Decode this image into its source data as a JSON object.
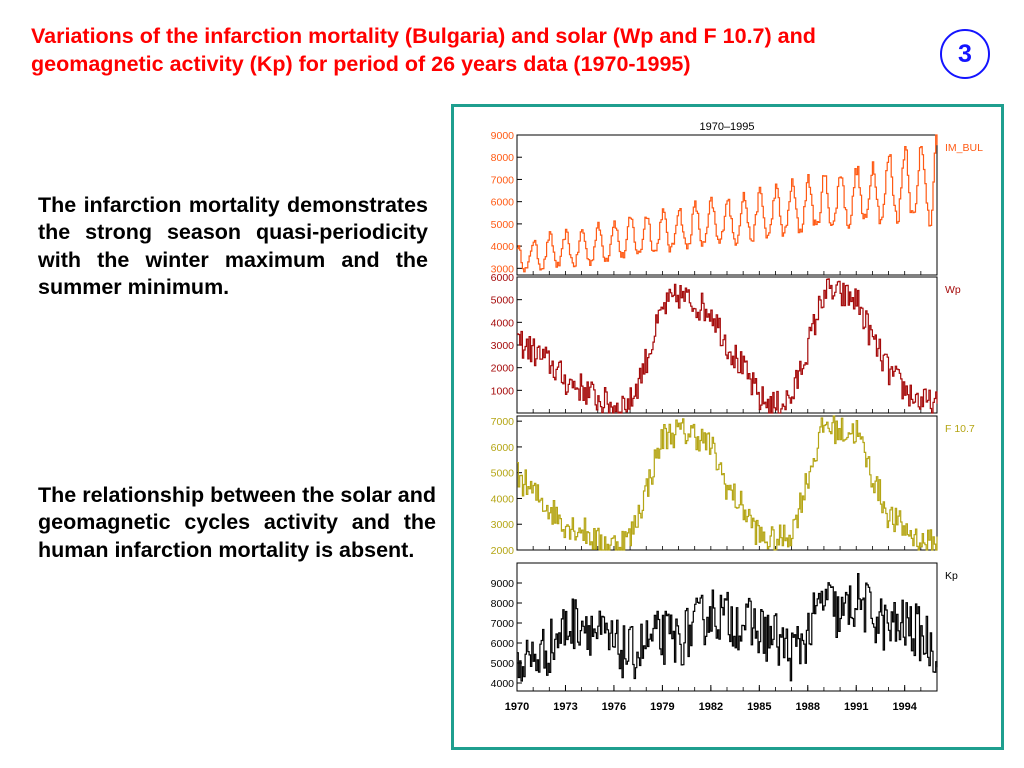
{
  "slide": {
    "title": "Variations of the infarction mortality (Bulgaria) and solar (Wp and F 10.7) and geomagnetic activity (Kp) for period of 26 years data (1970-1995)",
    "number": "3",
    "paragraph_1": "The infarction mortality demonstrates the strong season quasi-periodicity with the winter maximum and the summer minimum.",
    "paragraph_2": "The relationship between the solar and geomagnetic cycles activity and the human infarction mortality is absent.",
    "frame_color": "#1f9f8f"
  },
  "chart_data": {
    "type": "line",
    "title": "1970–1995",
    "x_range": [
      1970,
      1996
    ],
    "x_ticks": [
      "1970",
      "1973",
      "1976",
      "1979",
      "1982",
      "1985",
      "1988",
      "1991",
      "1994"
    ],
    "x_tick_values": [
      1970,
      1973,
      1976,
      1979,
      1982,
      1985,
      1988,
      1991,
      1994
    ],
    "panels": [
      {
        "name": "IM_BUL",
        "color": "#ff5a14",
        "ylim": [
          2700,
          9000
        ],
        "y_ticks": [
          3000,
          4000,
          5000,
          6000,
          7000,
          8000,
          9000
        ],
        "annual_points": [
          {
            "year": 1970,
            "low": 2900,
            "high": 4000
          },
          {
            "year": 1972,
            "low": 3100,
            "high": 4500
          },
          {
            "year": 1974,
            "low": 3200,
            "high": 4700
          },
          {
            "year": 1976,
            "low": 3500,
            "high": 5100
          },
          {
            "year": 1978,
            "low": 3700,
            "high": 5400
          },
          {
            "year": 1980,
            "low": 3900,
            "high": 5700
          },
          {
            "year": 1982,
            "low": 4100,
            "high": 6000
          },
          {
            "year": 1984,
            "low": 4300,
            "high": 6300
          },
          {
            "year": 1986,
            "low": 4500,
            "high": 6600
          },
          {
            "year": 1988,
            "low": 4800,
            "high": 7000
          },
          {
            "year": 1990,
            "low": 5000,
            "high": 7300
          },
          {
            "year": 1992,
            "low": 5200,
            "high": 7700
          },
          {
            "year": 1994,
            "low": 5400,
            "high": 8500
          },
          {
            "year": 1995.5,
            "low": 5000,
            "high": 9000
          }
        ]
      },
      {
        "name": "Wp",
        "color": "#a50a0a",
        "ylim": [
          0,
          6000
        ],
        "y_ticks": [
          1000,
          2000,
          3000,
          4000,
          5000,
          6000
        ],
        "points": [
          [
            1970,
            3200
          ],
          [
            1971,
            2700
          ],
          [
            1972,
            2200
          ],
          [
            1973,
            1400
          ],
          [
            1974,
            1100
          ],
          [
            1975,
            600
          ],
          [
            1976,
            300
          ],
          [
            1977,
            500
          ],
          [
            1978,
            2400
          ],
          [
            1979,
            4600
          ],
          [
            1980,
            5200
          ],
          [
            1981,
            4800
          ],
          [
            1982,
            4500
          ],
          [
            1983,
            3000
          ],
          [
            1984,
            1900
          ],
          [
            1985,
            600
          ],
          [
            1986,
            300
          ],
          [
            1987,
            700
          ],
          [
            1988,
            3000
          ],
          [
            1989,
            5400
          ],
          [
            1990,
            5200
          ],
          [
            1991,
            5000
          ],
          [
            1992,
            3200
          ],
          [
            1993,
            1800
          ],
          [
            1994,
            1000
          ],
          [
            1995,
            500
          ],
          [
            1996,
            300
          ]
        ]
      },
      {
        "name": "F 10.7",
        "color": "#b4a514",
        "ylim": [
          2000,
          7200
        ],
        "y_ticks": [
          2000,
          3000,
          4000,
          5000,
          6000,
          7000
        ],
        "points": [
          [
            1970,
            4900
          ],
          [
            1971,
            4200
          ],
          [
            1972,
            3600
          ],
          [
            1973,
            3000
          ],
          [
            1974,
            2800
          ],
          [
            1975,
            2300
          ],
          [
            1976,
            2200
          ],
          [
            1977,
            2500
          ],
          [
            1978,
            4400
          ],
          [
            1979,
            6400
          ],
          [
            1980,
            6600
          ],
          [
            1981,
            6500
          ],
          [
            1982,
            6000
          ],
          [
            1983,
            4400
          ],
          [
            1984,
            3600
          ],
          [
            1985,
            2500
          ],
          [
            1986,
            2300
          ],
          [
            1987,
            2700
          ],
          [
            1988,
            4900
          ],
          [
            1989,
            6900
          ],
          [
            1990,
            6600
          ],
          [
            1991,
            6600
          ],
          [
            1992,
            4800
          ],
          [
            1993,
            3300
          ],
          [
            1994,
            2800
          ],
          [
            1995,
            2300
          ],
          [
            1996,
            2200
          ]
        ]
      },
      {
        "name": "Kp",
        "color": "#000000",
        "ylim": [
          3600,
          10000
        ],
        "y_ticks": [
          4000,
          5000,
          6000,
          7000,
          8000,
          9000
        ],
        "points": [
          [
            1970,
            5000
          ],
          [
            1971,
            5200
          ],
          [
            1972,
            5800
          ],
          [
            1973,
            6800
          ],
          [
            1974,
            7200
          ],
          [
            1975,
            6400
          ],
          [
            1976,
            5800
          ],
          [
            1977,
            5400
          ],
          [
            1978,
            6000
          ],
          [
            1979,
            6300
          ],
          [
            1980,
            6100
          ],
          [
            1981,
            6800
          ],
          [
            1982,
            7600
          ],
          [
            1983,
            7200
          ],
          [
            1984,
            7000
          ],
          [
            1985,
            6600
          ],
          [
            1986,
            6200
          ],
          [
            1987,
            5400
          ],
          [
            1988,
            6500
          ],
          [
            1989,
            8300
          ],
          [
            1990,
            7200
          ],
          [
            1991,
            8200
          ],
          [
            1992,
            7400
          ],
          [
            1993,
            6700
          ],
          [
            1994,
            6900
          ],
          [
            1995,
            6400
          ],
          [
            1996,
            5600
          ]
        ]
      }
    ]
  }
}
